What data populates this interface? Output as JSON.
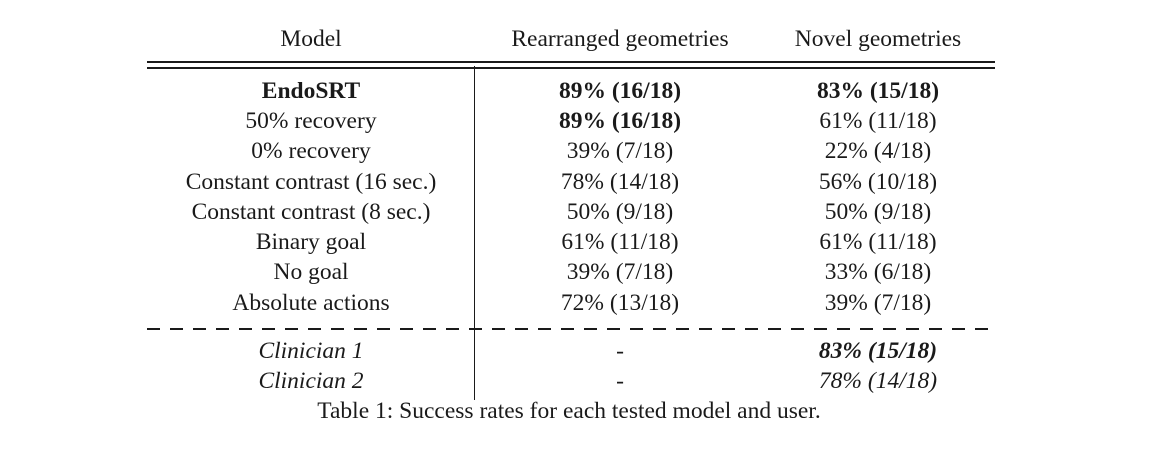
{
  "table": {
    "headers": {
      "model": "Model",
      "rearranged": "Rearranged geometries",
      "novel": "Novel geometries"
    },
    "model_rows": [
      {
        "model": "EndoSRT",
        "rearranged": "89% (16/18)",
        "novel": "83% (15/18)",
        "model_bold": true,
        "rearranged_bold": true,
        "novel_bold": true
      },
      {
        "model": "50% recovery",
        "rearranged": "89% (16/18)",
        "novel": "61% (11/18)",
        "model_bold": false,
        "rearranged_bold": true,
        "novel_bold": false
      },
      {
        "model": "0% recovery",
        "rearranged": "39% (7/18)",
        "novel": "22% (4/18)",
        "model_bold": false,
        "rearranged_bold": false,
        "novel_bold": false
      },
      {
        "model": "Constant contrast (16 sec.)",
        "rearranged": "78% (14/18)",
        "novel": "56% (10/18)",
        "model_bold": false,
        "rearranged_bold": false,
        "novel_bold": false
      },
      {
        "model": "Constant contrast (8 sec.)",
        "rearranged": "50% (9/18)",
        "novel": "50% (9/18)",
        "model_bold": false,
        "rearranged_bold": false,
        "novel_bold": false
      },
      {
        "model": "Binary goal",
        "rearranged": "61% (11/18)",
        "novel": "61% (11/18)",
        "model_bold": false,
        "rearranged_bold": false,
        "novel_bold": false
      },
      {
        "model": "No goal",
        "rearranged": "39% (7/18)",
        "novel": "33% (6/18)",
        "model_bold": false,
        "rearranged_bold": false,
        "novel_bold": false
      },
      {
        "model": "Absolute actions",
        "rearranged": "72% (13/18)",
        "novel": "39% (7/18)",
        "model_bold": false,
        "rearranged_bold": false,
        "novel_bold": false
      }
    ],
    "clinician_rows": [
      {
        "model": "Clinician 1",
        "rearranged": "-",
        "novel": "83% (15/18)",
        "novel_bold": true
      },
      {
        "model": "Clinician 2",
        "rearranged": "-",
        "novel": "78% (14/18)",
        "novel_bold": false
      }
    ]
  },
  "caption": "Table 1: Success rates for each tested model and user."
}
